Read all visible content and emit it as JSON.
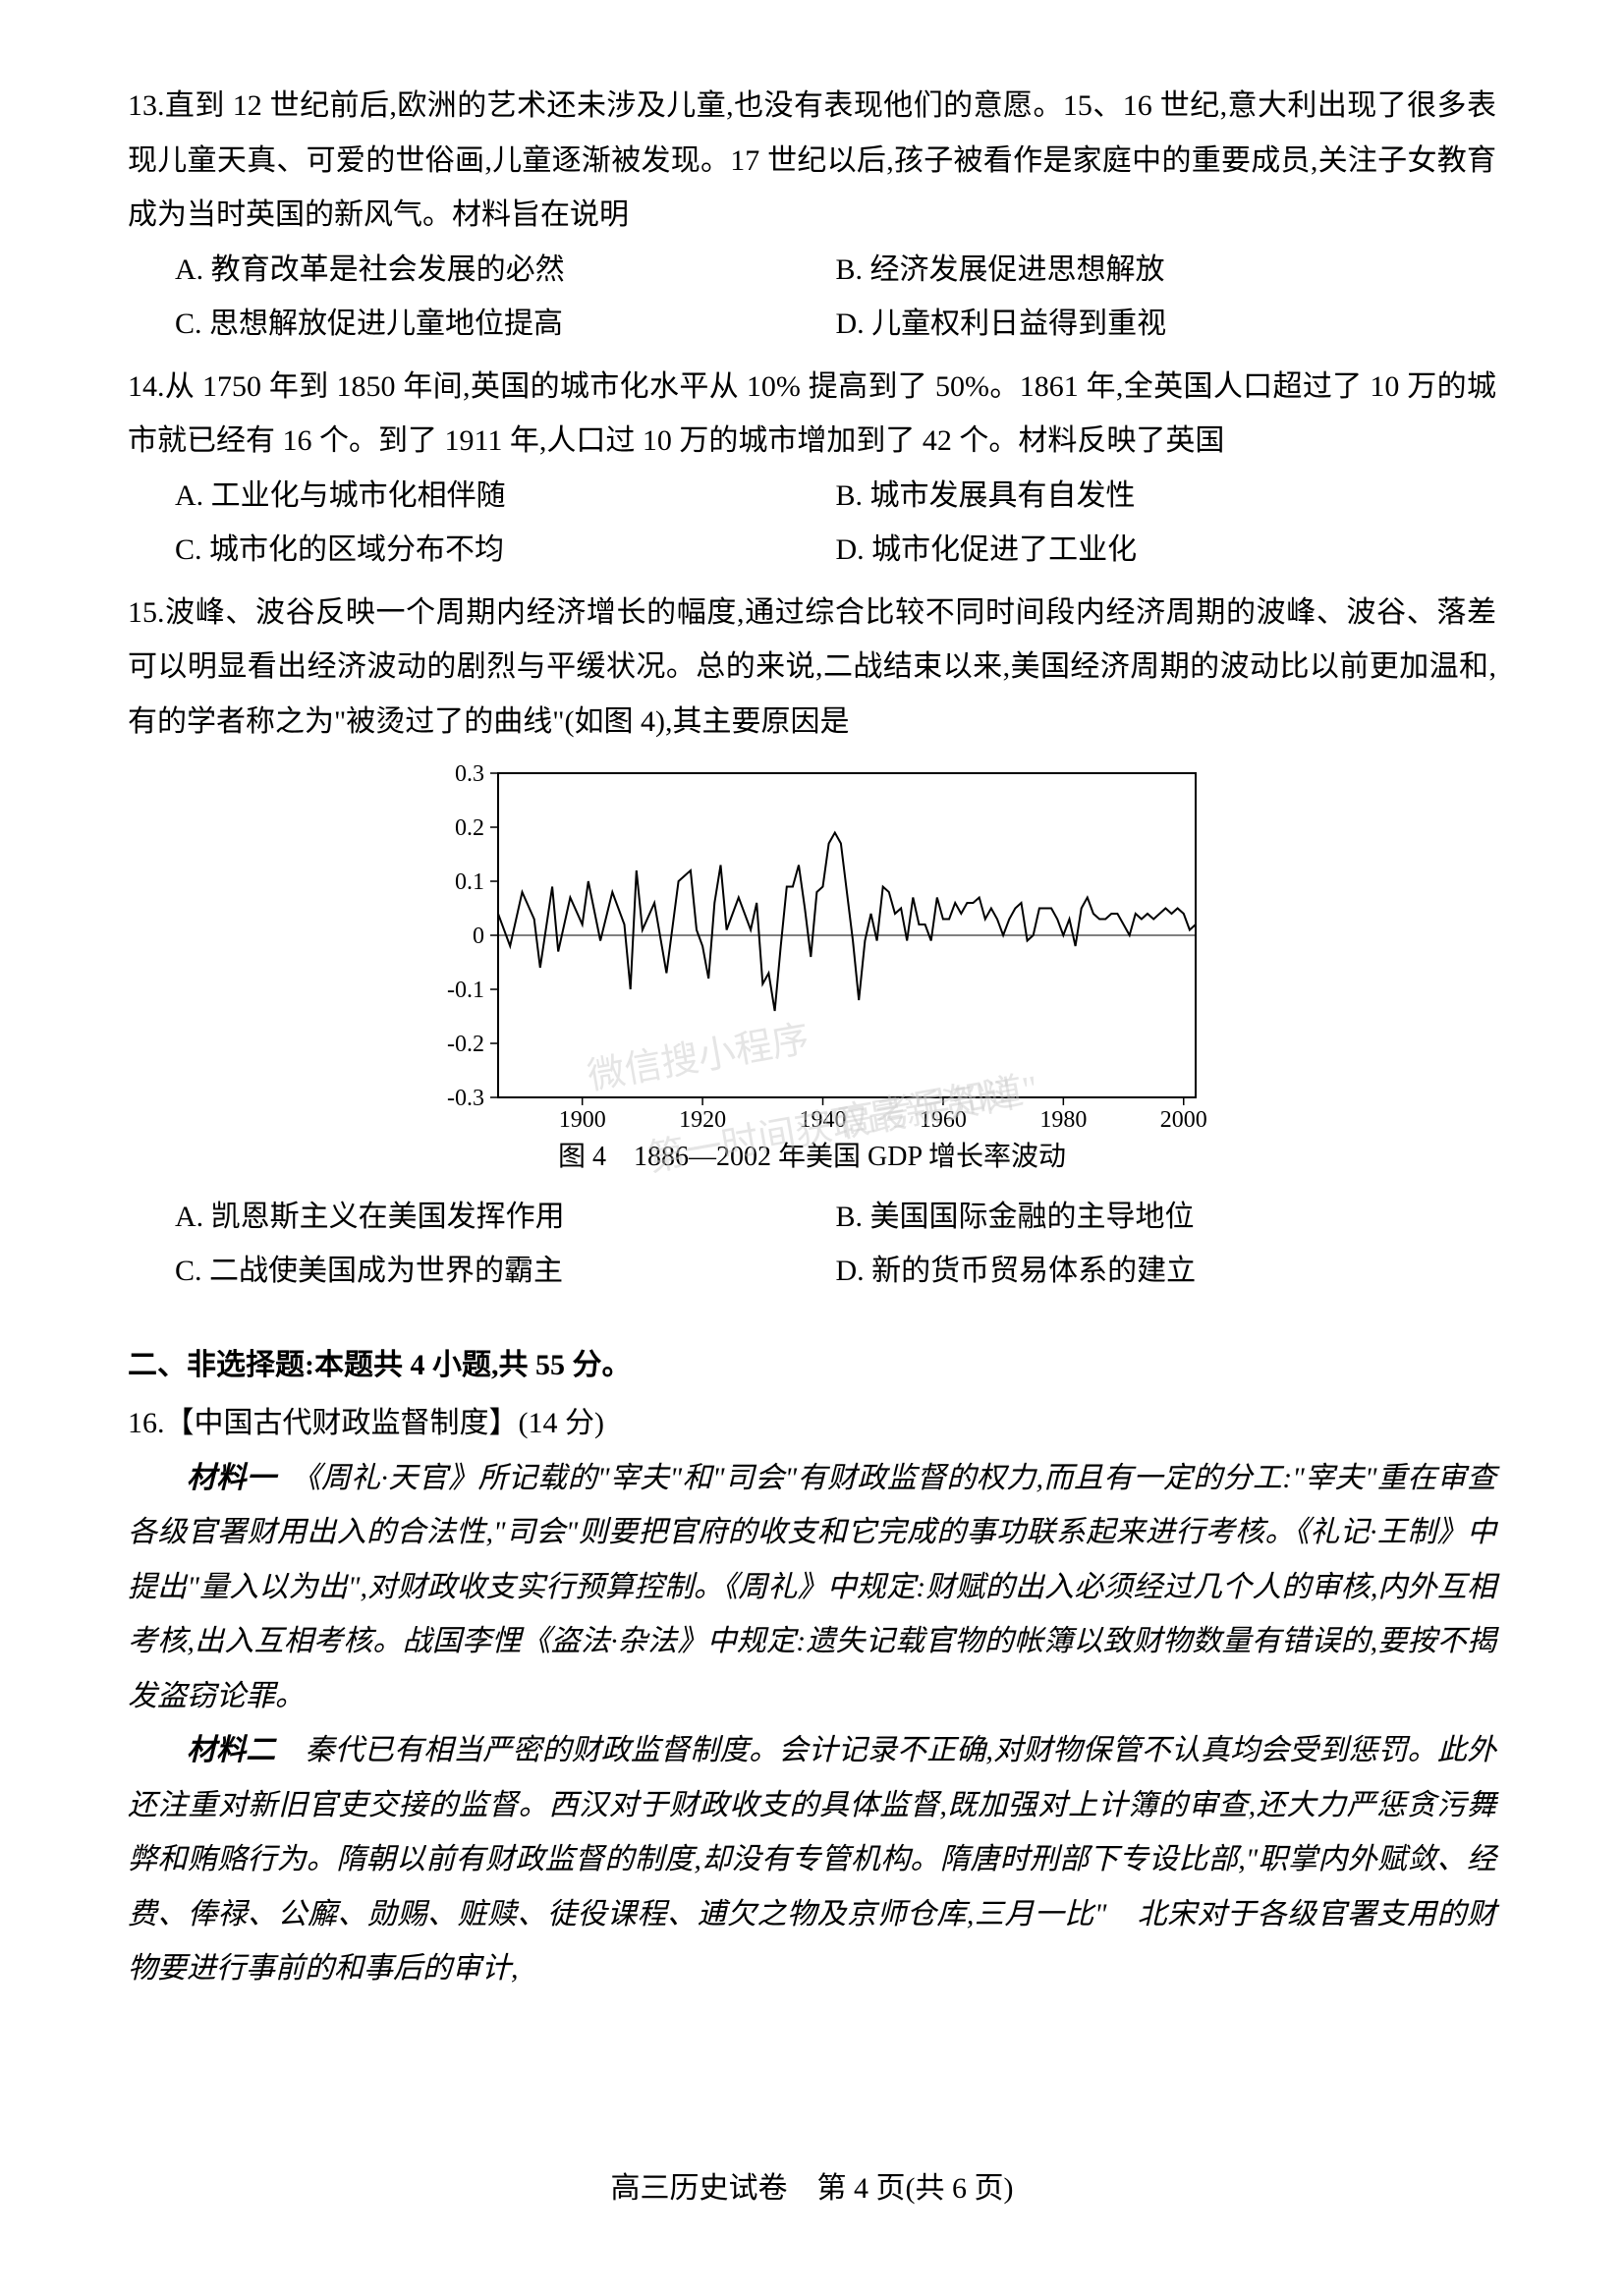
{
  "q13": {
    "num": "13.",
    "stem": "直到 12 世纪前后,欧洲的艺术还未涉及儿童,也没有表现他们的意愿。15、16 世纪,意大利出现了很多表现儿童天真、可爱的世俗画,儿童逐渐被发现。17 世纪以后,孩子被看作是家庭中的重要成员,关注子女教育成为当时英国的新风气。材料旨在说明",
    "optA": "A. 教育改革是社会发展的必然",
    "optB": "B. 经济发展促进思想解放",
    "optC": "C. 思想解放促进儿童地位提高",
    "optD": "D. 儿童权利日益得到重视"
  },
  "q14": {
    "num": "14.",
    "stem": "从 1750 年到 1850 年间,英国的城市化水平从 10% 提高到了 50%。1861 年,全英国人口超过了 10 万的城市就已经有 16 个。到了 1911 年,人口过 10 万的城市增加到了 42 个。材料反映了英国",
    "optA": "A. 工业化与城市化相伴随",
    "optB": "B. 城市发展具有自发性",
    "optC": "C. 城市化的区域分布不均",
    "optD": "D. 城市化促进了工业化"
  },
  "q15": {
    "num": "15.",
    "stem": "波峰、波谷反映一个周期内经济增长的幅度,通过综合比较不同时间段内经济周期的波峰、波谷、落差可以明显看出经济波动的剧烈与平缓状况。总的来说,二战结束以来,美国经济周期的波动比以前更加温和,有的学者称之为\"被烫过了的曲线\"(如图 4),其主要原因是",
    "optA": "A. 凯恩斯主义在美国发挥作用",
    "optB": "B. 美国国际金融的主导地位",
    "optC": "C. 二战使美国成为世界的霸主",
    "optD": "D. 新的货币贸易体系的建立"
  },
  "section2": {
    "header": "二、非选择题:本题共 4 小题,共 55 分。"
  },
  "q16": {
    "title": "16.【中国古代财政监督制度】(14 分)",
    "material1_label": "材料一",
    "material1": "　《周礼·天官》所记载的\"宰夫\"和\"司会\"有财政监督的权力,而且有一定的分工:\"宰夫\"重在审查各级官署财用出入的合法性,\"司会\"则要把官府的收支和它完成的事功联系起来进行考核。《礼记·王制》中提出\"量入以为出\",对财政收支实行预算控制。《周礼》中规定:财赋的出入必须经过几个人的审核,内外互相考核,出入互相考核。战国李悝《盗法·杂法》中规定:遗失记载官物的帐簿以致财物数量有错误的,要按不揭发盗窃论罪。",
    "material2_label": "材料二",
    "material2": "　秦代已有相当严密的财政监督制度。会计记录不正确,对财物保管不认真均会受到惩罚。此外还注重对新旧官吏交接的监督。西汉对于财政收支的具体监督,既加强对上计簿的审查,还大力严惩贪污舞弊和贿赂行为。隋朝以前有财政监督的制度,却没有专管机构。隋唐时刑部下专设比部,\"职掌内外赋敛、经费、俸禄、公廨、勋赐、赃赎、徒役课程、逋欠之物及京师仓库,三月一比\"　北宋对于各级官署支用的财物要进行事前的和事后的审计,"
  },
  "chart": {
    "caption": "图 4　1886—2002 年美国 GDP 增长率波动",
    "ylim": [
      -0.3,
      0.3
    ],
    "yticks": [
      -0.3,
      -0.2,
      -0.1,
      0,
      0.1,
      0.2,
      0.3
    ],
    "ytick_labels": [
      "-0.3",
      "-0.2",
      "-0.1",
      "0",
      "0.1",
      "0.2",
      "0.3"
    ],
    "xlim": [
      1886,
      2002
    ],
    "xticks": [
      1900,
      1920,
      1940,
      1960,
      1980,
      2000
    ],
    "xtick_labels": [
      "1900",
      "1920",
      "1940",
      "1960",
      "1980",
      "2000"
    ],
    "line_color": "#000000",
    "axis_color": "#000000",
    "background_color": "#ffffff",
    "data": [
      [
        1886,
        0.04
      ],
      [
        1888,
        -0.02
      ],
      [
        1890,
        0.08
      ],
      [
        1892,
        0.03
      ],
      [
        1893,
        -0.06
      ],
      [
        1895,
        0.09
      ],
      [
        1896,
        -0.03
      ],
      [
        1898,
        0.07
      ],
      [
        1900,
        0.02
      ],
      [
        1901,
        0.1
      ],
      [
        1903,
        -0.01
      ],
      [
        1905,
        0.08
      ],
      [
        1907,
        0.02
      ],
      [
        1908,
        -0.1
      ],
      [
        1909,
        0.12
      ],
      [
        1910,
        0.01
      ],
      [
        1912,
        0.06
      ],
      [
        1914,
        -0.07
      ],
      [
        1916,
        0.1
      ],
      [
        1918,
        0.12
      ],
      [
        1919,
        0.01
      ],
      [
        1920,
        -0.02
      ],
      [
        1921,
        -0.08
      ],
      [
        1922,
        0.06
      ],
      [
        1923,
        0.13
      ],
      [
        1924,
        0.01
      ],
      [
        1926,
        0.07
      ],
      [
        1928,
        0.01
      ],
      [
        1929,
        0.06
      ],
      [
        1930,
        -0.09
      ],
      [
        1931,
        -0.07
      ],
      [
        1932,
        -0.14
      ],
      [
        1933,
        -0.02
      ],
      [
        1934,
        0.09
      ],
      [
        1935,
        0.09
      ],
      [
        1936,
        0.13
      ],
      [
        1937,
        0.05
      ],
      [
        1938,
        -0.04
      ],
      [
        1939,
        0.08
      ],
      [
        1940,
        0.09
      ],
      [
        1941,
        0.17
      ],
      [
        1942,
        0.19
      ],
      [
        1943,
        0.17
      ],
      [
        1944,
        0.08
      ],
      [
        1945,
        -0.01
      ],
      [
        1946,
        -0.12
      ],
      [
        1947,
        -0.01
      ],
      [
        1948,
        0.04
      ],
      [
        1949,
        -0.01
      ],
      [
        1950,
        0.09
      ],
      [
        1951,
        0.08
      ],
      [
        1952,
        0.04
      ],
      [
        1953,
        0.05
      ],
      [
        1954,
        -0.01
      ],
      [
        1955,
        0.07
      ],
      [
        1956,
        0.02
      ],
      [
        1957,
        0.02
      ],
      [
        1958,
        -0.01
      ],
      [
        1959,
        0.07
      ],
      [
        1960,
        0.03
      ],
      [
        1961,
        0.03
      ],
      [
        1962,
        0.06
      ],
      [
        1963,
        0.04
      ],
      [
        1964,
        0.06
      ],
      [
        1965,
        0.06
      ],
      [
        1966,
        0.07
      ],
      [
        1967,
        0.03
      ],
      [
        1968,
        0.05
      ],
      [
        1969,
        0.03
      ],
      [
        1970,
        0.0
      ],
      [
        1971,
        0.03
      ],
      [
        1972,
        0.05
      ],
      [
        1973,
        0.06
      ],
      [
        1974,
        -0.01
      ],
      [
        1975,
        -0.0
      ],
      [
        1976,
        0.05
      ],
      [
        1977,
        0.05
      ],
      [
        1978,
        0.05
      ],
      [
        1979,
        0.03
      ],
      [
        1980,
        -0.0
      ],
      [
        1981,
        0.03
      ],
      [
        1982,
        -0.02
      ],
      [
        1983,
        0.05
      ],
      [
        1984,
        0.07
      ],
      [
        1985,
        0.04
      ],
      [
        1986,
        0.03
      ],
      [
        1987,
        0.03
      ],
      [
        1988,
        0.04
      ],
      [
        1989,
        0.04
      ],
      [
        1990,
        0.02
      ],
      [
        1991,
        -0.0
      ],
      [
        1992,
        0.04
      ],
      [
        1993,
        0.03
      ],
      [
        1994,
        0.04
      ],
      [
        1995,
        0.03
      ],
      [
        1996,
        0.04
      ],
      [
        1997,
        0.05
      ],
      [
        1998,
        0.04
      ],
      [
        1999,
        0.05
      ],
      [
        2000,
        0.04
      ],
      [
        2001,
        0.01
      ],
      [
        2002,
        0.02
      ]
    ]
  },
  "watermarks": {
    "wm1": "\"高考早知道\"",
    "wm2": "微信搜小程序",
    "wm3": "第一时间获取最新资料"
  },
  "footer": "高三历史试卷　第 4 页(共 6 页)"
}
